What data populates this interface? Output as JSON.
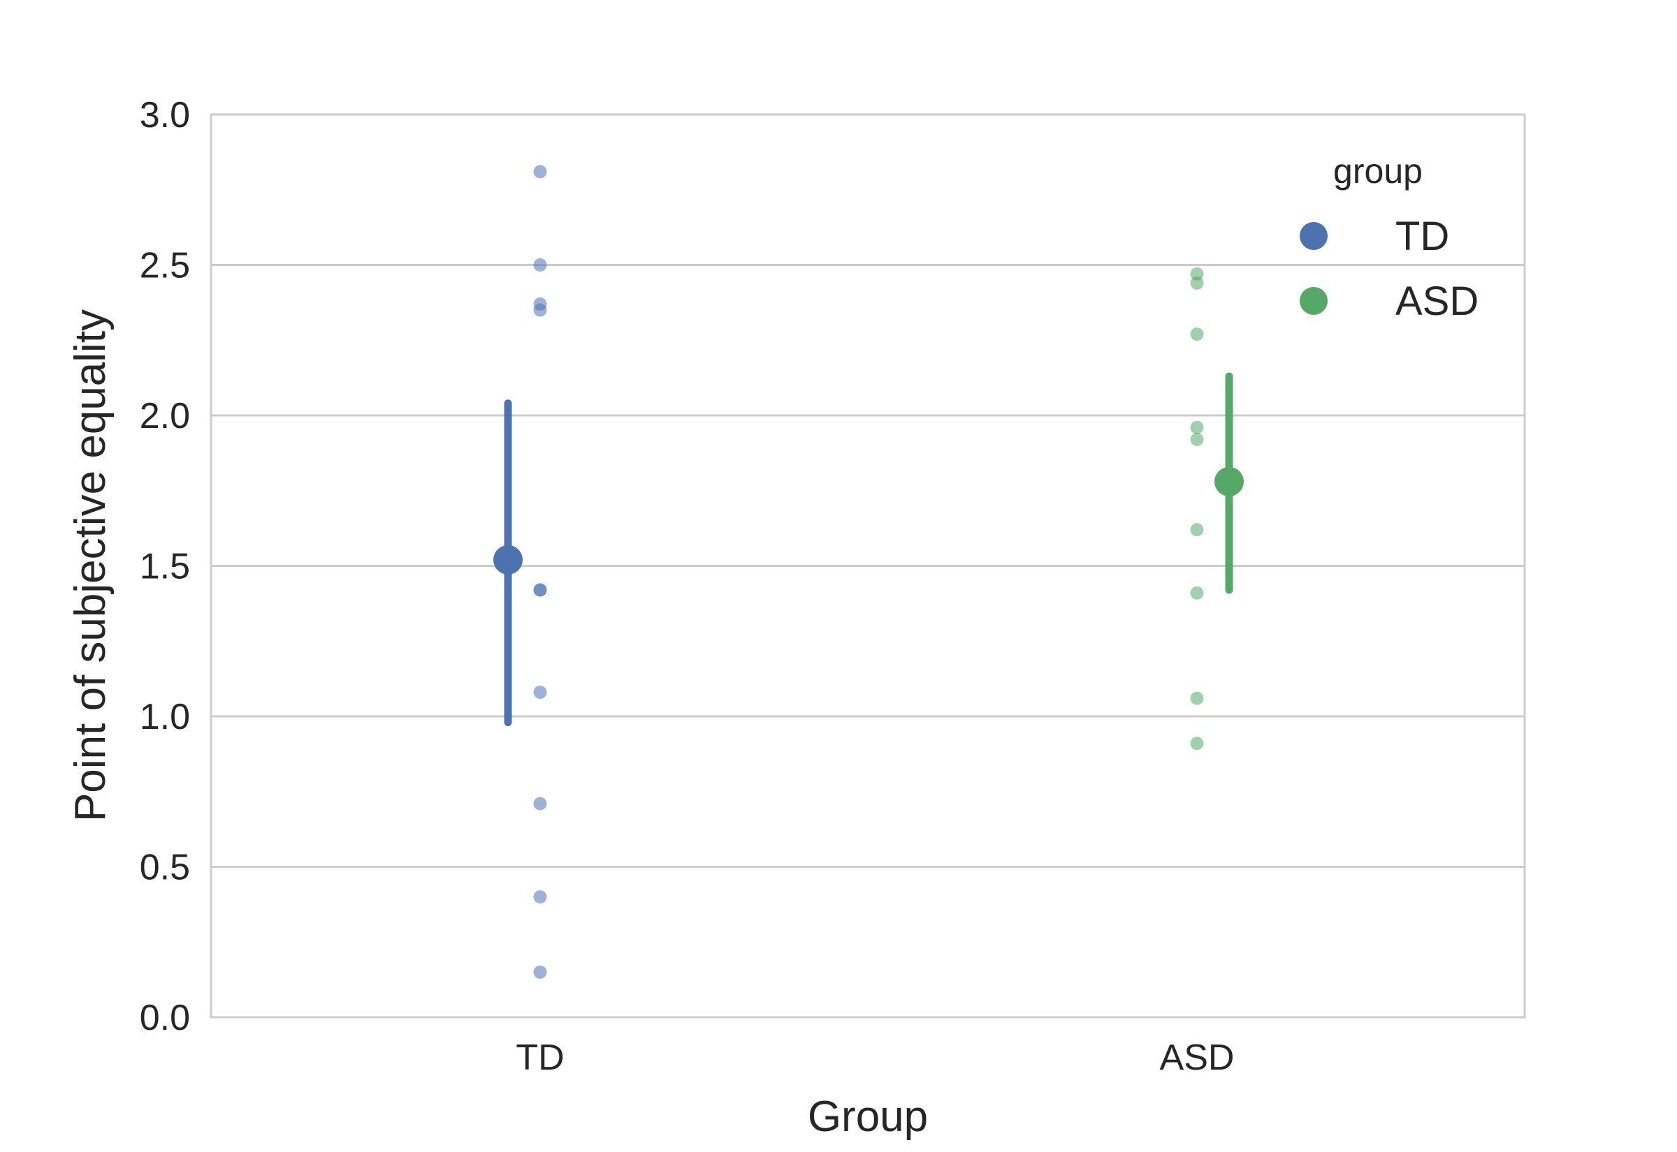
{
  "chart_data": {
    "type": "scatter",
    "xlabel": "Group",
    "ylabel": "Point of subjective equality",
    "categories": [
      "TD",
      "ASD"
    ],
    "ylim": [
      0.0,
      3.0
    ],
    "yticks": [
      "0.0",
      "0.5",
      "1.0",
      "1.5",
      "2.0",
      "2.5",
      "3.0"
    ],
    "grid": "horizontal",
    "legend": {
      "title": "group",
      "placement": "top-right"
    },
    "series": [
      {
        "name": "TD",
        "color": "#4C72B0",
        "points": [
          2.81,
          2.5,
          2.37,
          2.35,
          1.42,
          1.42,
          1.08,
          0.71,
          0.4,
          0.15
        ],
        "mean": 1.52,
        "ci": [
          0.98,
          2.04
        ]
      },
      {
        "name": "ASD",
        "color": "#55A868",
        "points": [
          2.47,
          2.44,
          2.27,
          1.96,
          1.92,
          1.62,
          1.41,
          1.06,
          0.91
        ],
        "mean": 1.78,
        "ci": [
          1.42,
          2.13
        ]
      }
    ]
  }
}
